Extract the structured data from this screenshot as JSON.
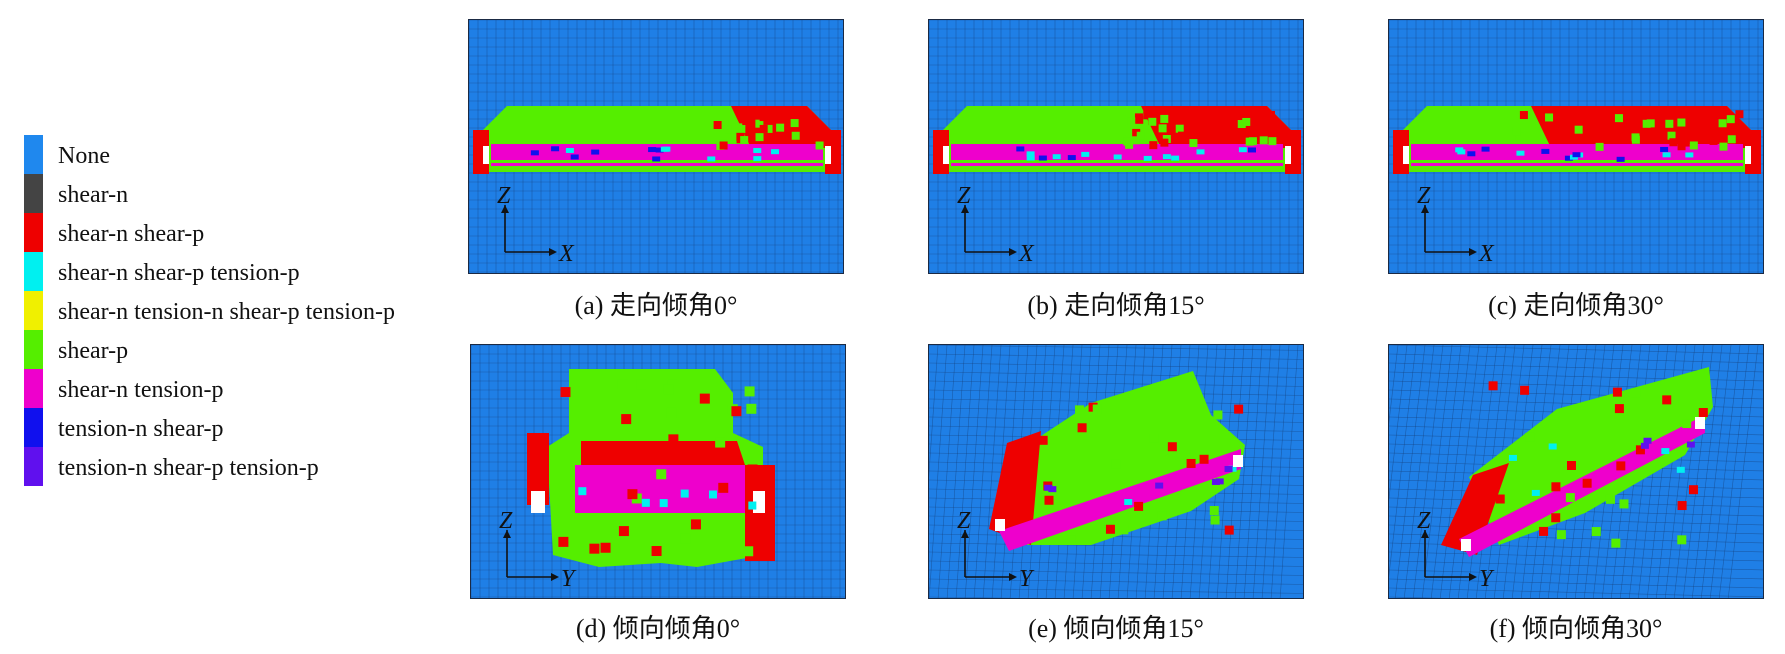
{
  "legend": {
    "items": [
      {
        "label": "None",
        "color": "#1f88ee"
      },
      {
        "label": "shear-n",
        "color": "#444444"
      },
      {
        "label": "shear-n shear-p",
        "color": "#ee0000"
      },
      {
        "label": "shear-n shear-p tension-p",
        "color": "#00f0f0"
      },
      {
        "label": "shear-n tension-n shear-p tension-p",
        "color": "#f0f000"
      },
      {
        "label": "shear-p",
        "color": "#55ee00"
      },
      {
        "label": "shear-n tension-p",
        "color": "#ee00cc"
      },
      {
        "label": "tension-n shear-p",
        "color": "#1010ee"
      },
      {
        "label": "tension-n shear-p tension-p",
        "color": "#6010ee"
      }
    ]
  },
  "panels": [
    {
      "caption": "(a) 走向倾角0°",
      "axis_h": "X",
      "axis_v": "Z",
      "view": "strike",
      "angle": 0
    },
    {
      "caption": "(b) 走向倾角15°",
      "axis_h": "X",
      "axis_v": "Z",
      "view": "strike",
      "angle": 15
    },
    {
      "caption": "(c) 走向倾角30°",
      "axis_h": "X",
      "axis_v": "Z",
      "view": "strike",
      "angle": 30
    },
    {
      "caption": "(d) 倾向倾角0°",
      "axis_h": "Y",
      "axis_v": "Z",
      "view": "dip",
      "angle": 0
    },
    {
      "caption": "(e) 倾向倾角15°",
      "axis_h": "Y",
      "axis_v": "Z",
      "view": "dip",
      "angle": 15
    },
    {
      "caption": "(f) 倾向倾角30°",
      "axis_h": "Y",
      "axis_v": "Z",
      "view": "dip",
      "angle": 30
    }
  ]
}
